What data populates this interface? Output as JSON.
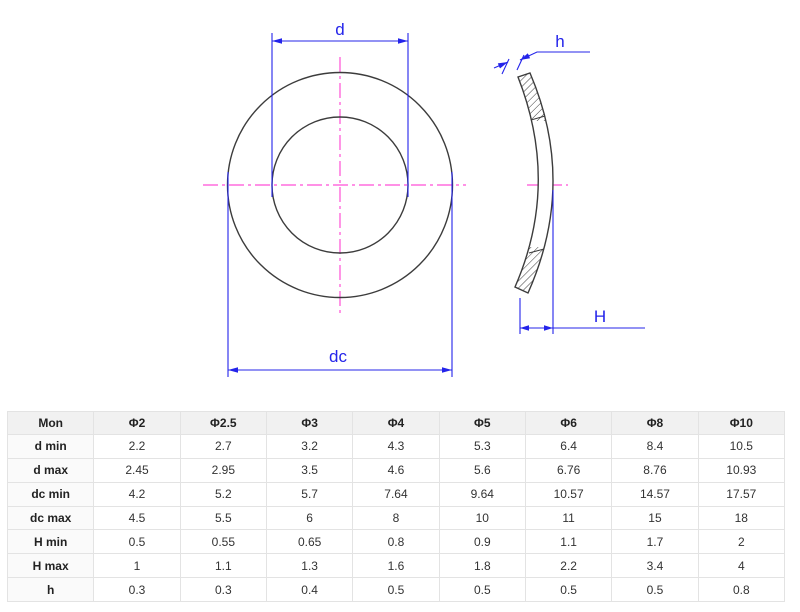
{
  "drawing": {
    "front_view": {
      "labels": {
        "inner_diameter": "d",
        "outer_diameter": "dc"
      }
    },
    "side_view": {
      "labels": {
        "thickness": "h",
        "free_height": "H"
      }
    },
    "colors": {
      "dimension_blue": "#2424ea",
      "centerline_pink": "#ff4fd6",
      "outline_gray": "#3c3c3c"
    }
  },
  "table": {
    "header": [
      "Mon",
      "Φ2",
      "Φ2.5",
      "Φ3",
      "Φ4",
      "Φ5",
      "Φ6",
      "Φ8",
      "Φ10"
    ],
    "rows": [
      {
        "label": "d min",
        "values": [
          "2.2",
          "2.7",
          "3.2",
          "4.3",
          "5.3",
          "6.4",
          "8.4",
          "10.5"
        ]
      },
      {
        "label": "d max",
        "values": [
          "2.45",
          "2.95",
          "3.5",
          "4.6",
          "5.6",
          "6.76",
          "8.76",
          "10.93"
        ]
      },
      {
        "label": "dc min",
        "values": [
          "4.2",
          "5.2",
          "5.7",
          "7.64",
          "9.64",
          "10.57",
          "14.57",
          "17.57"
        ]
      },
      {
        "label": "dc max",
        "values": [
          "4.5",
          "5.5",
          "6",
          "8",
          "10",
          "11",
          "15",
          "18"
        ]
      },
      {
        "label": "H min",
        "values": [
          "0.5",
          "0.55",
          "0.65",
          "0.8",
          "0.9",
          "1.1",
          "1.7",
          "2"
        ]
      },
      {
        "label": "H max",
        "values": [
          "1",
          "1.1",
          "1.3",
          "1.6",
          "1.8",
          "2.2",
          "3.4",
          "4"
        ]
      },
      {
        "label": "h",
        "values": [
          "0.3",
          "0.3",
          "0.4",
          "0.5",
          "0.5",
          "0.5",
          "0.5",
          "0.8"
        ]
      }
    ]
  }
}
